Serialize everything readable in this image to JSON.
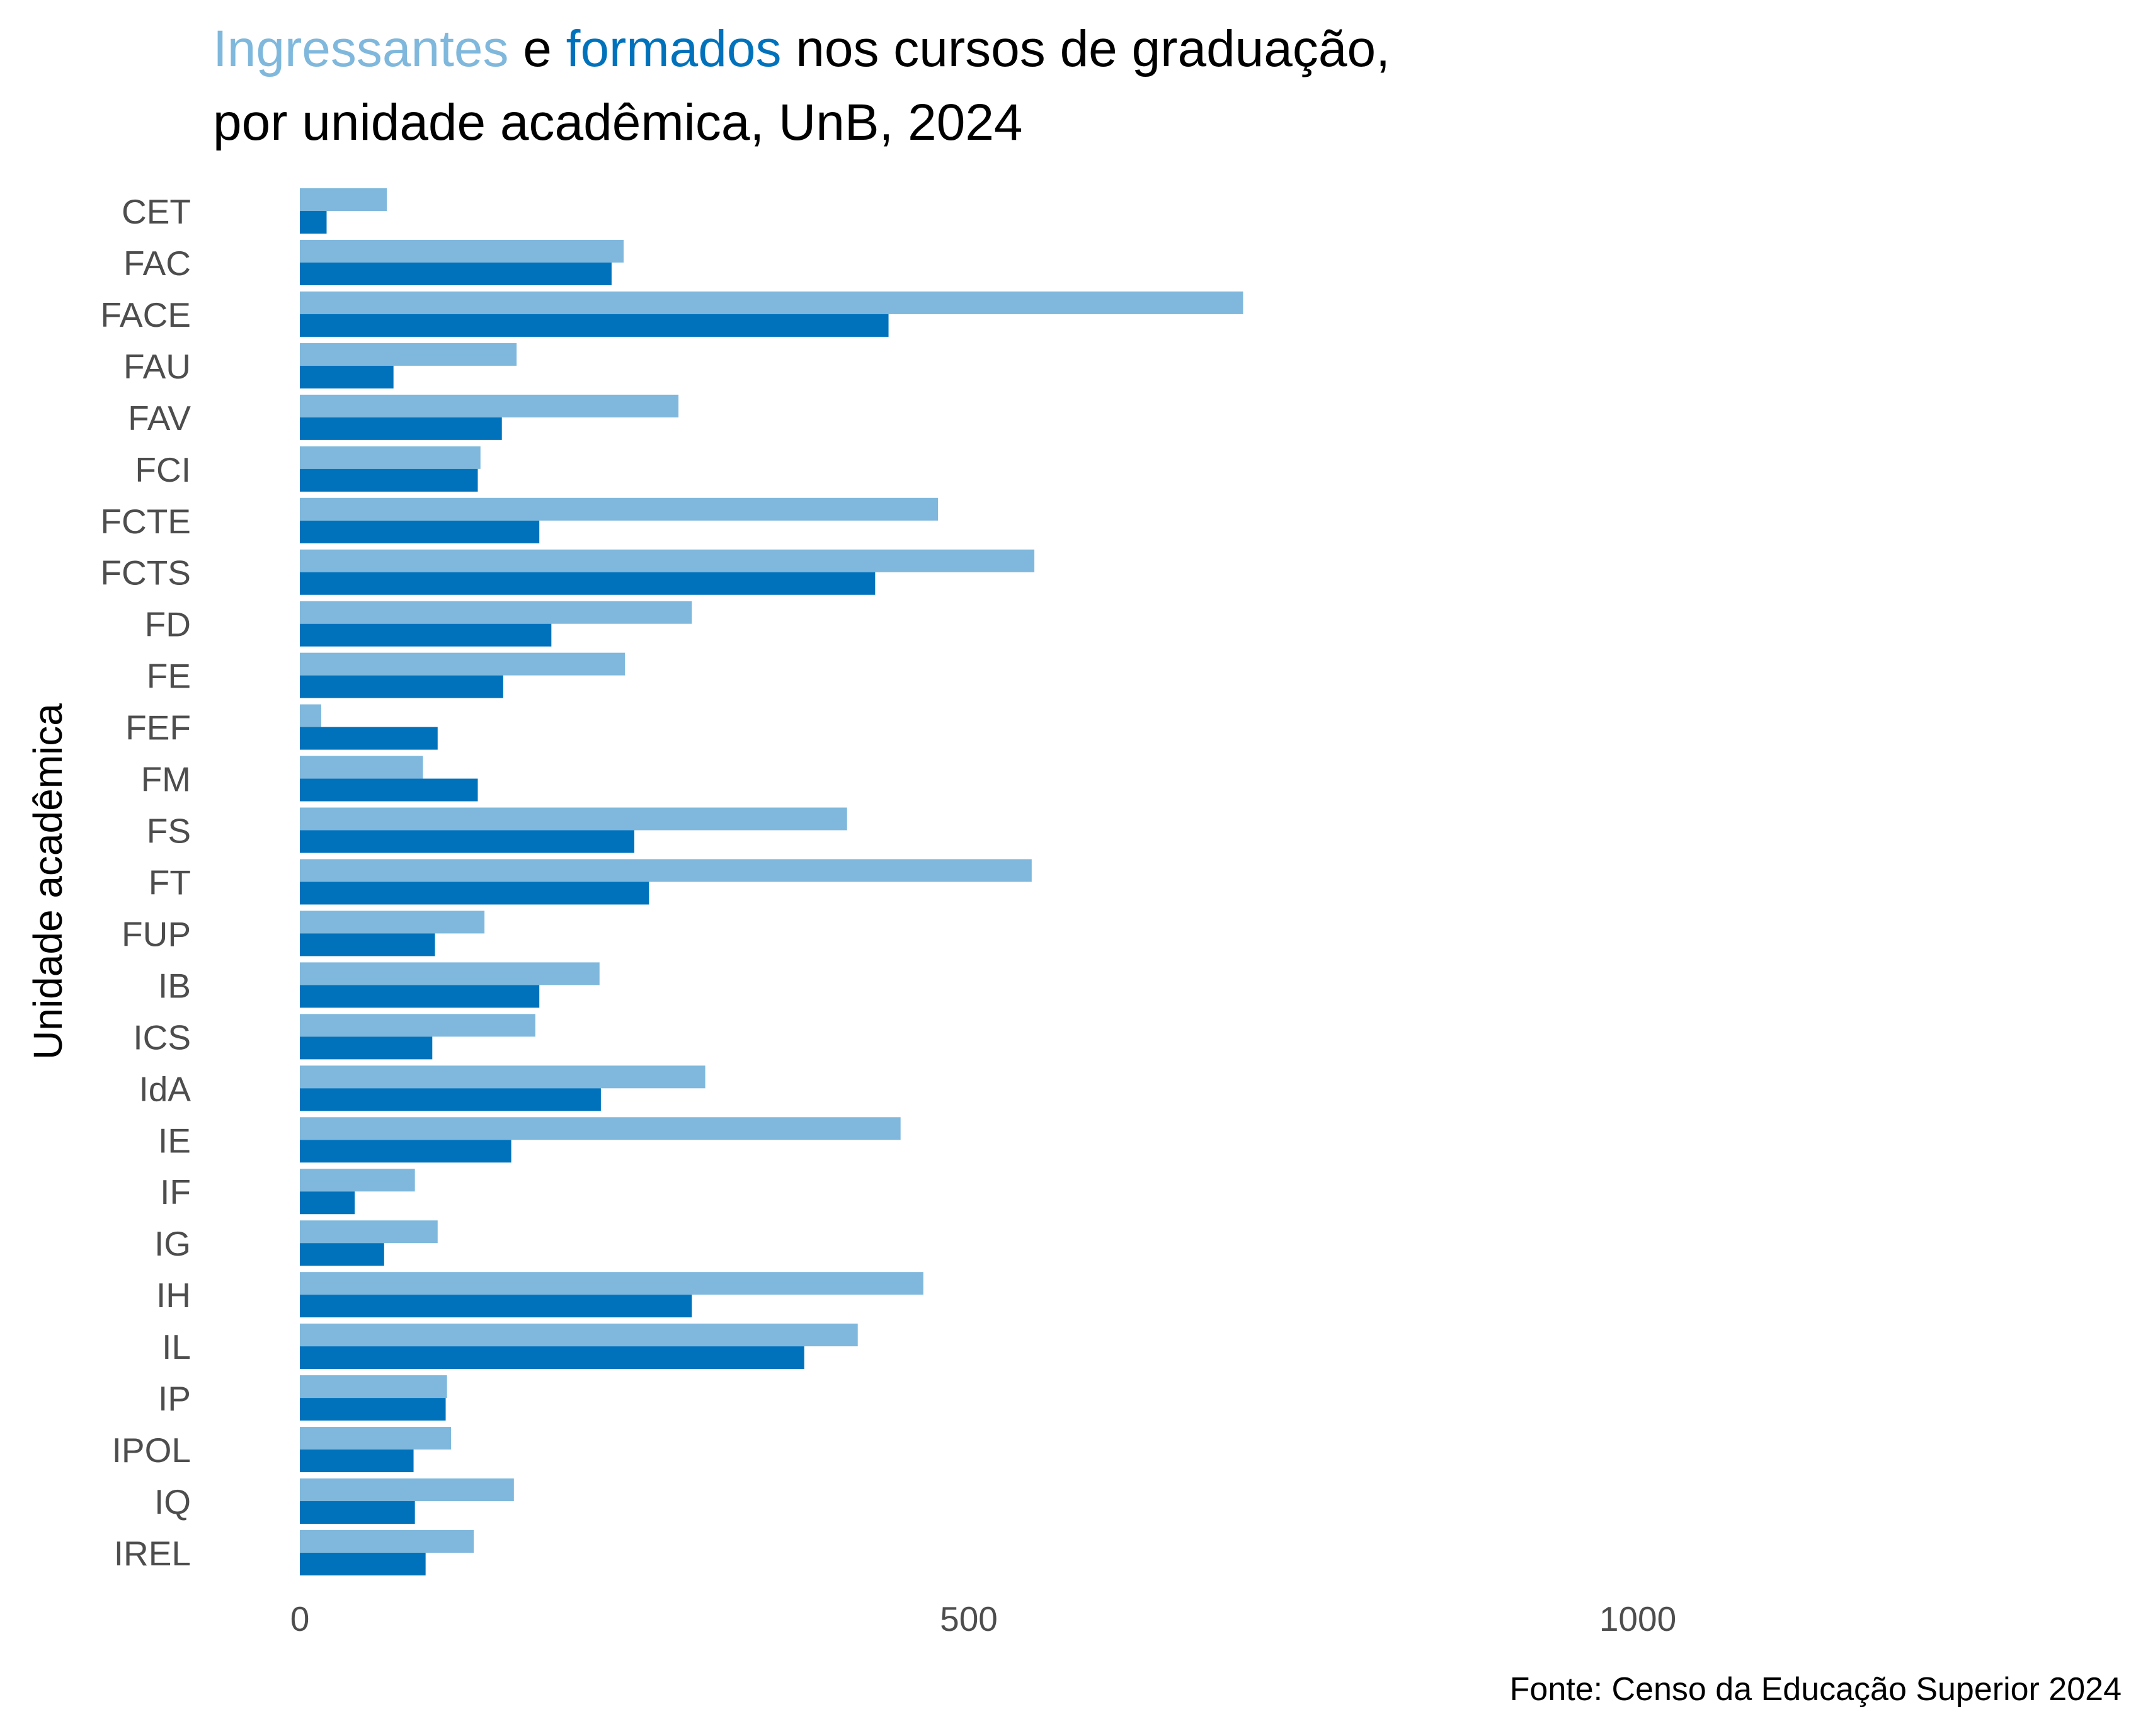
{
  "title": {
    "part_ingressantes": "Ingressantes",
    "part_e": " e ",
    "part_formados": "formados",
    "part_rest": " nos cursos de graduação,",
    "line2": "por unidade acadêmica, UnB, 2024"
  },
  "caption": "Fonte: Censo da Educação Superior 2024",
  "colors": {
    "ingressantes": "#7fb8dc",
    "formados": "#0072bc",
    "text": "#000000",
    "axis_text": "#4d4d4d"
  },
  "chart_data": {
    "type": "bar",
    "orientation": "horizontal",
    "ylabel": "Unidade acadêmica",
    "xlabel": "",
    "xlim": [
      0,
      1370
    ],
    "x_ticks": [
      0,
      500,
      1000
    ],
    "grid": false,
    "legend": "in-title",
    "categories": [
      "CET",
      "FAC",
      "FACE",
      "FAU",
      "FAV",
      "FCI",
      "FCTE",
      "FCTS",
      "FD",
      "FE",
      "FEF",
      "FM",
      "FS",
      "FT",
      "FUP",
      "IB",
      "ICS",
      "IdA",
      "IE",
      "IF",
      "IG",
      "IH",
      "IL",
      "IP",
      "IPOL",
      "IQ",
      "IREL"
    ],
    "series": [
      {
        "name": "Ingressantes",
        "values": [
          65,
          242,
          705,
          162,
          283,
          135,
          477,
          549,
          293,
          243,
          16,
          92,
          409,
          547,
          138,
          224,
          176,
          303,
          449,
          86,
          103,
          466,
          417,
          110,
          113,
          160,
          130
        ]
      },
      {
        "name": "formados",
        "values": [
          20,
          233,
          440,
          70,
          151,
          133,
          179,
          430,
          188,
          152,
          103,
          133,
          250,
          261,
          101,
          179,
          99,
          225,
          158,
          41,
          63,
          293,
          377,
          109,
          85,
          86,
          94
        ]
      }
    ]
  }
}
